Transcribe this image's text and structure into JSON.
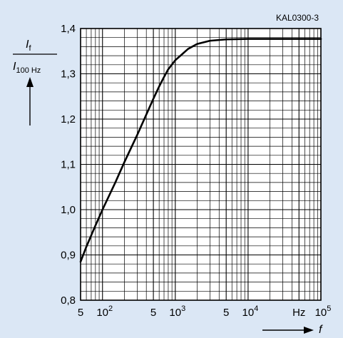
{
  "chart_data": {
    "type": "line",
    "code": "KAL0300-3",
    "ylabel": {
      "numerator": "I",
      "numerator_sub": "f",
      "denominator": "I",
      "denominator_sub": "100 Hz"
    },
    "xlabel": "f",
    "x_scale": "log",
    "xlim": [
      50,
      100000
    ],
    "ylim": [
      0.8,
      1.4
    ],
    "x_tick_labels": [
      {
        "x": 50,
        "text": "5"
      },
      {
        "x": 100,
        "text": "10",
        "exp": "2"
      },
      {
        "x": 500,
        "text": "5"
      },
      {
        "x": 1000,
        "text": "10",
        "exp": "3"
      },
      {
        "x": 5000,
        "text": "5"
      },
      {
        "x": 10000,
        "text": "10",
        "exp": "4"
      },
      {
        "x": 50000,
        "text": "Hz"
      },
      {
        "x": 100000,
        "text": "10",
        "exp": "5"
      }
    ],
    "y_tick_labels": [
      {
        "y": 0.8,
        "text": "0,8"
      },
      {
        "y": 0.9,
        "text": "0,9"
      },
      {
        "y": 1.0,
        "text": "1,0"
      },
      {
        "y": 1.1,
        "text": "1,1"
      },
      {
        "y": 1.2,
        "text": "1,2"
      },
      {
        "y": 1.3,
        "text": "1,3"
      },
      {
        "y": 1.4,
        "text": "1,4"
      }
    ],
    "grid": true,
    "series": [
      {
        "x": [
          50,
          60,
          80,
          100,
          150,
          200,
          300,
          400,
          500,
          600,
          700,
          800,
          1000,
          1500,
          2000,
          3000,
          5000,
          10000,
          20000,
          50000,
          100000
        ],
        "y": [
          0.885,
          0.918,
          0.965,
          1.0,
          1.06,
          1.105,
          1.165,
          1.21,
          1.245,
          1.272,
          1.293,
          1.31,
          1.33,
          1.355,
          1.366,
          1.373,
          1.376,
          1.377,
          1.377,
          1.377,
          1.377
        ]
      }
    ]
  }
}
